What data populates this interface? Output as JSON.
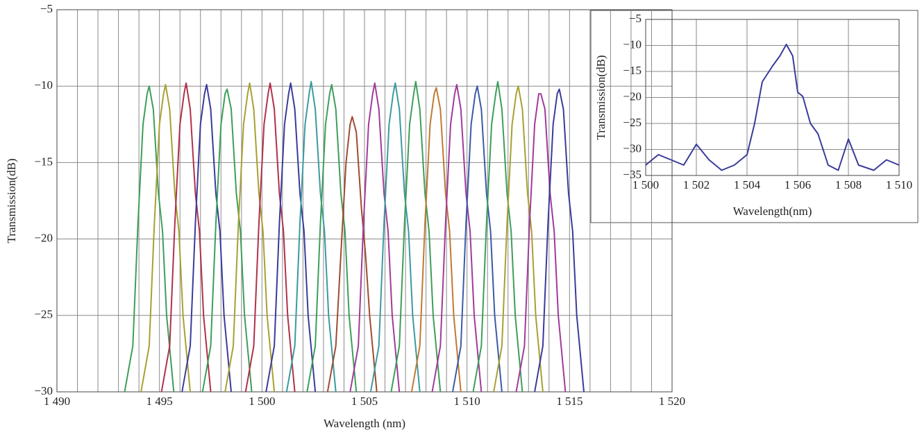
{
  "chart_data": [
    {
      "type": "line",
      "xlabel": "Wavelength (nm)",
      "ylabel": "Transmission(dB)",
      "xlim": [
        1490,
        1520
      ],
      "ylim": [
        -30,
        -5
      ],
      "xticks": [
        {
          "value": 1490,
          "label": "1 490"
        },
        {
          "value": 1495,
          "label": "1 495"
        },
        {
          "value": 1500,
          "label": "1 500"
        },
        {
          "value": 1505,
          "label": "1 505"
        },
        {
          "value": 1510,
          "label": "1 510"
        },
        {
          "value": 1515,
          "label": "1 515"
        },
        {
          "value": 1520,
          "label": "1 520"
        }
      ],
      "xminorticks": [
        1491,
        1492,
        1493,
        1494,
        1496,
        1497,
        1498,
        1499,
        1501,
        1502,
        1503,
        1504,
        1506,
        1507,
        1508,
        1509,
        1511,
        1512,
        1513,
        1514,
        1516,
        1517,
        1518,
        1519
      ],
      "yticks": [
        {
          "value": -30,
          "label": "−30"
        },
        {
          "value": -25,
          "label": "−25"
        },
        {
          "value": -20,
          "label": "−20"
        },
        {
          "value": -15,
          "label": "−15"
        },
        {
          "value": -10,
          "label": "−10"
        },
        {
          "value": -5,
          "label": "−5"
        }
      ],
      "grid": true,
      "series": [
        {
          "color": "#3c9e5a",
          "x": [
            1493.3,
            1493.7,
            1493.95,
            1494.2,
            1494.4,
            1494.5,
            1494.7,
            1494.95,
            1495.15,
            1495.35,
            1495.7
          ],
          "values": [
            -30,
            -27,
            -19,
            -12.5,
            -10.5,
            -10,
            -11.5,
            -17,
            -19.5,
            -25,
            -30
          ]
        },
        {
          "color": "#a8a030",
          "x": [
            1494.1,
            1494.5,
            1494.75,
            1495,
            1495.2,
            1495.3,
            1495.5,
            1495.75,
            1495.95,
            1496.15,
            1496.5
          ],
          "values": [
            -30,
            -27,
            -19,
            -12.5,
            -10.5,
            -9.9,
            -11.5,
            -17,
            -19.5,
            -25,
            -30
          ]
        },
        {
          "color": "#b0304a",
          "x": [
            1495.1,
            1495.5,
            1495.75,
            1496,
            1496.2,
            1496.3,
            1496.5,
            1496.75,
            1496.95,
            1497.15,
            1497.5
          ],
          "values": [
            -30,
            -27,
            -19,
            -12.5,
            -10.5,
            -9.8,
            -11.5,
            -17,
            -19.5,
            -25,
            -30
          ]
        },
        {
          "color": "#3a3a9a",
          "x": [
            1496.1,
            1496.5,
            1496.75,
            1497,
            1497.2,
            1497.3,
            1497.5,
            1497.75,
            1497.95,
            1498.15,
            1498.5
          ],
          "values": [
            -30,
            -27,
            -19,
            -12.5,
            -10.5,
            -9.9,
            -11.5,
            -17,
            -19.5,
            -25,
            -30
          ]
        },
        {
          "color": "#3c9e5a",
          "x": [
            1497.1,
            1497.5,
            1497.75,
            1498,
            1498.2,
            1498.3,
            1498.5,
            1498.75,
            1498.95,
            1499.15,
            1499.5
          ],
          "values": [
            -30,
            -27,
            -19,
            -12.5,
            -10.5,
            -10.2,
            -11.5,
            -17,
            -19.5,
            -25,
            -30
          ]
        },
        {
          "color": "#a8a030",
          "x": [
            1498.2,
            1498.6,
            1498.85,
            1499.1,
            1499.3,
            1499.4,
            1499.6,
            1499.85,
            1500.05,
            1500.25,
            1500.6
          ],
          "values": [
            -30,
            -27,
            -19,
            -12.5,
            -10.5,
            -9.8,
            -11.5,
            -17,
            -19.5,
            -25,
            -30
          ]
        },
        {
          "color": "#b0304a",
          "x": [
            1499.2,
            1499.6,
            1499.85,
            1500.1,
            1500.3,
            1500.4,
            1500.6,
            1500.85,
            1501.05,
            1501.25,
            1501.6
          ],
          "values": [
            -30,
            -27,
            -19,
            -12.5,
            -10.5,
            -9.8,
            -11.5,
            -17,
            -19.5,
            -25,
            -30
          ]
        },
        {
          "color": "#3a3a9a",
          "x": [
            1500.2,
            1500.6,
            1500.85,
            1501.1,
            1501.3,
            1501.4,
            1501.6,
            1501.85,
            1502.05,
            1502.25,
            1502.6
          ],
          "values": [
            -30,
            -27,
            -19,
            -12.5,
            -10.5,
            -9.8,
            -11.5,
            -17,
            -19.5,
            -25,
            -30
          ]
        },
        {
          "color": "#3a9aa0",
          "x": [
            1501.2,
            1501.6,
            1501.85,
            1502.1,
            1502.3,
            1502.4,
            1502.6,
            1502.85,
            1503.05,
            1503.25,
            1503.6
          ],
          "values": [
            -30,
            -27,
            -19,
            -12.5,
            -10.5,
            -9.7,
            -11.5,
            -17,
            -19.5,
            -25,
            -30
          ]
        },
        {
          "color": "#3c9e5a",
          "x": [
            1502.2,
            1502.6,
            1502.85,
            1503.1,
            1503.3,
            1503.4,
            1503.6,
            1503.85,
            1504.05,
            1504.25,
            1504.6
          ],
          "values": [
            -30,
            -27,
            -19,
            -12.5,
            -10.5,
            -9.9,
            -11.5,
            -17,
            -19.5,
            -25,
            -30
          ]
        },
        {
          "color": "#a04a30",
          "x": [
            1503.2,
            1503.6,
            1503.85,
            1504.1,
            1504.3,
            1504.4,
            1504.6,
            1504.85,
            1505.05,
            1505.25,
            1505.6
          ],
          "values": [
            -30,
            -27,
            -21,
            -15,
            -12.5,
            -12,
            -13,
            -18,
            -21,
            -25,
            -30
          ]
        },
        {
          "color": "#a03a9a",
          "x": [
            1504.3,
            1504.7,
            1504.95,
            1505.2,
            1505.4,
            1505.5,
            1505.7,
            1505.95,
            1506.15,
            1506.35,
            1506.7
          ],
          "values": [
            -30,
            -27,
            -19,
            -12.5,
            -10.5,
            -9.8,
            -11.5,
            -17,
            -19.5,
            -25,
            -30
          ]
        },
        {
          "color": "#3a9aa0",
          "x": [
            1505.3,
            1505.7,
            1505.95,
            1506.2,
            1506.4,
            1506.5,
            1506.7,
            1506.95,
            1507.15,
            1507.35,
            1507.7
          ],
          "values": [
            -30,
            -27,
            -19,
            -12.5,
            -10.5,
            -9.8,
            -11.5,
            -17,
            -19.5,
            -25,
            -30
          ]
        },
        {
          "color": "#3c9e5a",
          "x": [
            1506.3,
            1506.7,
            1506.95,
            1507.2,
            1507.4,
            1507.5,
            1507.7,
            1507.95,
            1508.15,
            1508.35,
            1508.7
          ],
          "values": [
            -30,
            -27,
            -19,
            -12.5,
            -10.5,
            -9.7,
            -11.5,
            -17,
            -19.5,
            -25,
            -30
          ]
        },
        {
          "color": "#c07a30",
          "x": [
            1507.3,
            1507.7,
            1507.95,
            1508.2,
            1508.4,
            1508.5,
            1508.7,
            1508.95,
            1509.15,
            1509.35,
            1509.7
          ],
          "values": [
            -30,
            -27,
            -19,
            -12.5,
            -10.5,
            -10.1,
            -11.5,
            -17,
            -19.5,
            -25,
            -30
          ]
        },
        {
          "color": "#a03a9a",
          "x": [
            1508.3,
            1508.7,
            1508.95,
            1509.2,
            1509.4,
            1509.5,
            1509.7,
            1509.95,
            1510.15,
            1510.35,
            1510.7
          ],
          "values": [
            -30,
            -27,
            -19,
            -12.5,
            -10.5,
            -9.9,
            -11.5,
            -17,
            -19.5,
            -25,
            -30
          ]
        },
        {
          "color": "#3a5aa8",
          "x": [
            1509.3,
            1509.7,
            1509.95,
            1510.2,
            1510.4,
            1510.5,
            1510.7,
            1510.95,
            1511.15,
            1511.35,
            1511.7
          ],
          "values": [
            -30,
            -27,
            -19,
            -12.5,
            -10.5,
            -10,
            -11.5,
            -17,
            -19.5,
            -25,
            -30
          ]
        },
        {
          "color": "#3c9e5a",
          "x": [
            1510.3,
            1510.7,
            1510.95,
            1511.2,
            1511.4,
            1511.5,
            1511.7,
            1511.95,
            1512.15,
            1512.35,
            1512.7
          ],
          "values": [
            -30,
            -27,
            -19,
            -12.5,
            -10.5,
            -9.7,
            -11.5,
            -17,
            -19.5,
            -25,
            -30
          ]
        },
        {
          "color": "#a8a030",
          "x": [
            1511.3,
            1511.7,
            1511.95,
            1512.2,
            1512.4,
            1512.5,
            1512.7,
            1512.95,
            1513.15,
            1513.35,
            1513.7
          ],
          "values": [
            -30,
            -27,
            -19,
            -12.5,
            -10.5,
            -10,
            -11.5,
            -17,
            -19.5,
            -25,
            -30
          ]
        },
        {
          "color": "#a03a9a",
          "x": [
            1512.4,
            1512.8,
            1513.05,
            1513.3,
            1513.5,
            1513.6,
            1513.8,
            1514.05,
            1514.25,
            1514.45,
            1514.8
          ],
          "values": [
            -30,
            -27,
            -19,
            -12.5,
            -10.5,
            -10.5,
            -11.5,
            -17,
            -19.5,
            -25,
            -30
          ]
        },
        {
          "color": "#3a3a9a",
          "x": [
            1513.3,
            1513.7,
            1513.95,
            1514.2,
            1514.4,
            1514.5,
            1514.7,
            1514.95,
            1515.15,
            1515.35,
            1515.7
          ],
          "values": [
            -30,
            -27,
            -19,
            -12.5,
            -10.5,
            -10.2,
            -11.5,
            -17,
            -19.5,
            -25,
            -30
          ]
        }
      ]
    },
    {
      "type": "line",
      "xlabel": "Wavelength(nm)",
      "ylabel": "Transmission(dB)",
      "xlim": [
        1500,
        1510
      ],
      "ylim": [
        -35,
        -5
      ],
      "xticks": [
        {
          "value": 1500,
          "label": "1 500"
        },
        {
          "value": 1502,
          "label": "1 502"
        },
        {
          "value": 1504,
          "label": "1 504"
        },
        {
          "value": 1506,
          "label": "1 506"
        },
        {
          "value": 1508,
          "label": "1 508"
        },
        {
          "value": 1510,
          "label": "1 510"
        }
      ],
      "yticks": [
        {
          "value": -35,
          "label": "−35"
        },
        {
          "value": -30,
          "label": "−30"
        },
        {
          "value": -25,
          "label": "−25"
        },
        {
          "value": -20,
          "label": "−20"
        },
        {
          "value": -15,
          "label": "−15"
        },
        {
          "value": -10,
          "label": "−10"
        },
        {
          "value": -5,
          "label": "−5"
        }
      ],
      "grid": true,
      "series": [
        {
          "color": "#3a3a9a",
          "x": [
            1500,
            1500.5,
            1501,
            1501.5,
            1502,
            1502.5,
            1503,
            1503.5,
            1504,
            1504.3,
            1504.6,
            1505,
            1505.3,
            1505.55,
            1505.8,
            1506,
            1506.2,
            1506.5,
            1506.8,
            1507.2,
            1507.6,
            1508,
            1508.4,
            1509,
            1509.5,
            1510
          ],
          "values": [
            -33,
            -31,
            -32,
            -33,
            -29,
            -32,
            -34,
            -33,
            -31,
            -25,
            -17,
            -14,
            -12,
            -9.8,
            -12,
            -19,
            -19.8,
            -25,
            -27,
            -33,
            -34,
            -28,
            -33,
            -34,
            -32,
            -33
          ]
        }
      ]
    }
  ]
}
